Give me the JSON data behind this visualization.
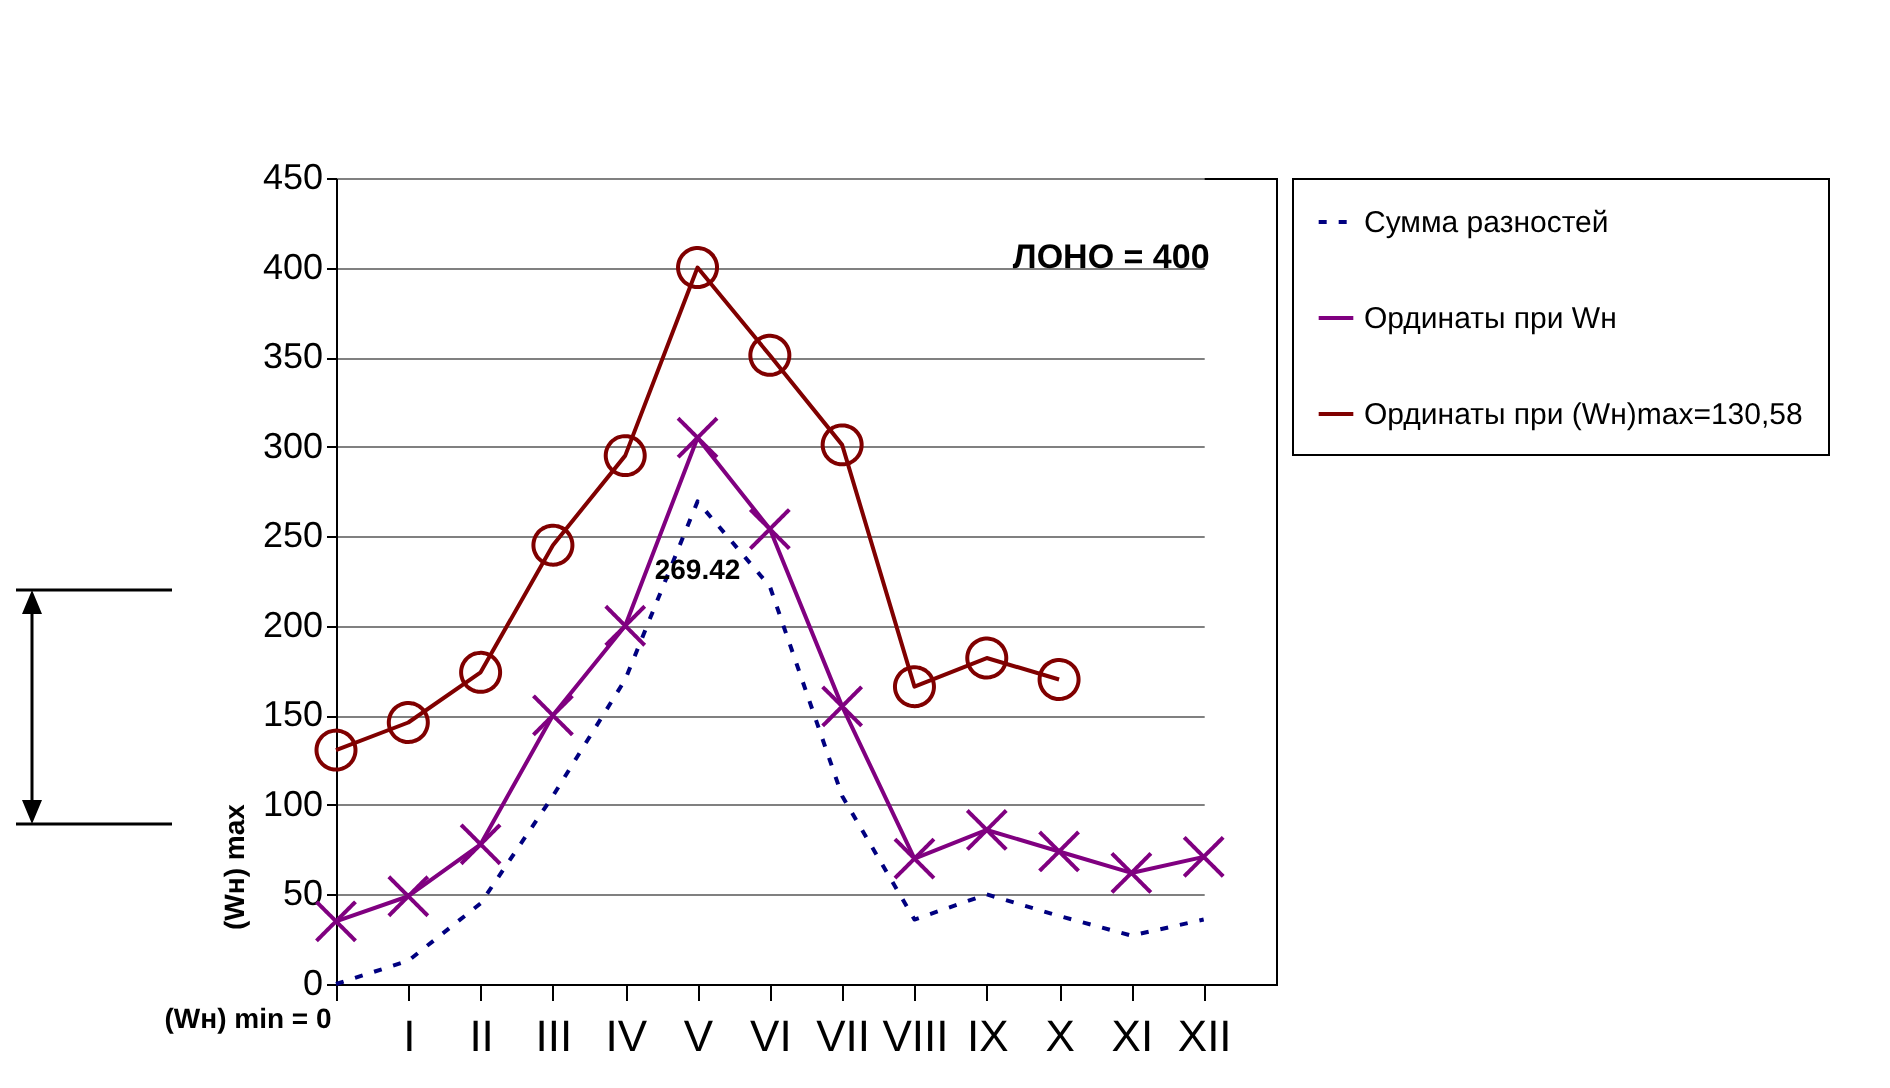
{
  "chart_data": {
    "type": "line",
    "categories": [
      null,
      "I",
      "II",
      "III",
      "IV",
      "V",
      "VI",
      "VII",
      "VIII",
      "IX",
      "X",
      "XI",
      "XII"
    ],
    "series": [
      {
        "name": "Сумма разностей",
        "color": "#000080",
        "line_style": "dotted",
        "marker": "none",
        "values": [
          0,
          13,
          45,
          105,
          170,
          269.42,
          222,
          105,
          36,
          50,
          38,
          27,
          36
        ]
      },
      {
        "name": "Ординаты при Wн",
        "color": "#800080",
        "line_style": "solid",
        "marker": "cross",
        "values": [
          35,
          49,
          78,
          150,
          200,
          305,
          254,
          155,
          70,
          86,
          74,
          62,
          71
        ]
      },
      {
        "name": "Ординаты при (Wн)max=130,58",
        "color": "#800000",
        "line_style": "solid",
        "marker": "circle",
        "values": [
          130.58,
          146,
          174,
          245,
          295,
          400,
          351,
          301,
          166,
          182,
          170,
          null,
          null
        ]
      }
    ],
    "ylim": [
      0,
      450
    ],
    "yticks": [
      0,
      50,
      100,
      150,
      200,
      250,
      300,
      350,
      400,
      450
    ],
    "grid": "y",
    "legend": "right",
    "annotations": [
      "ЛОНО = 400",
      {
        "text": "269.42",
        "x": "V",
        "y": 269.42
      },
      "(Wн) max",
      "(Wн) min = 0"
    ]
  }
}
